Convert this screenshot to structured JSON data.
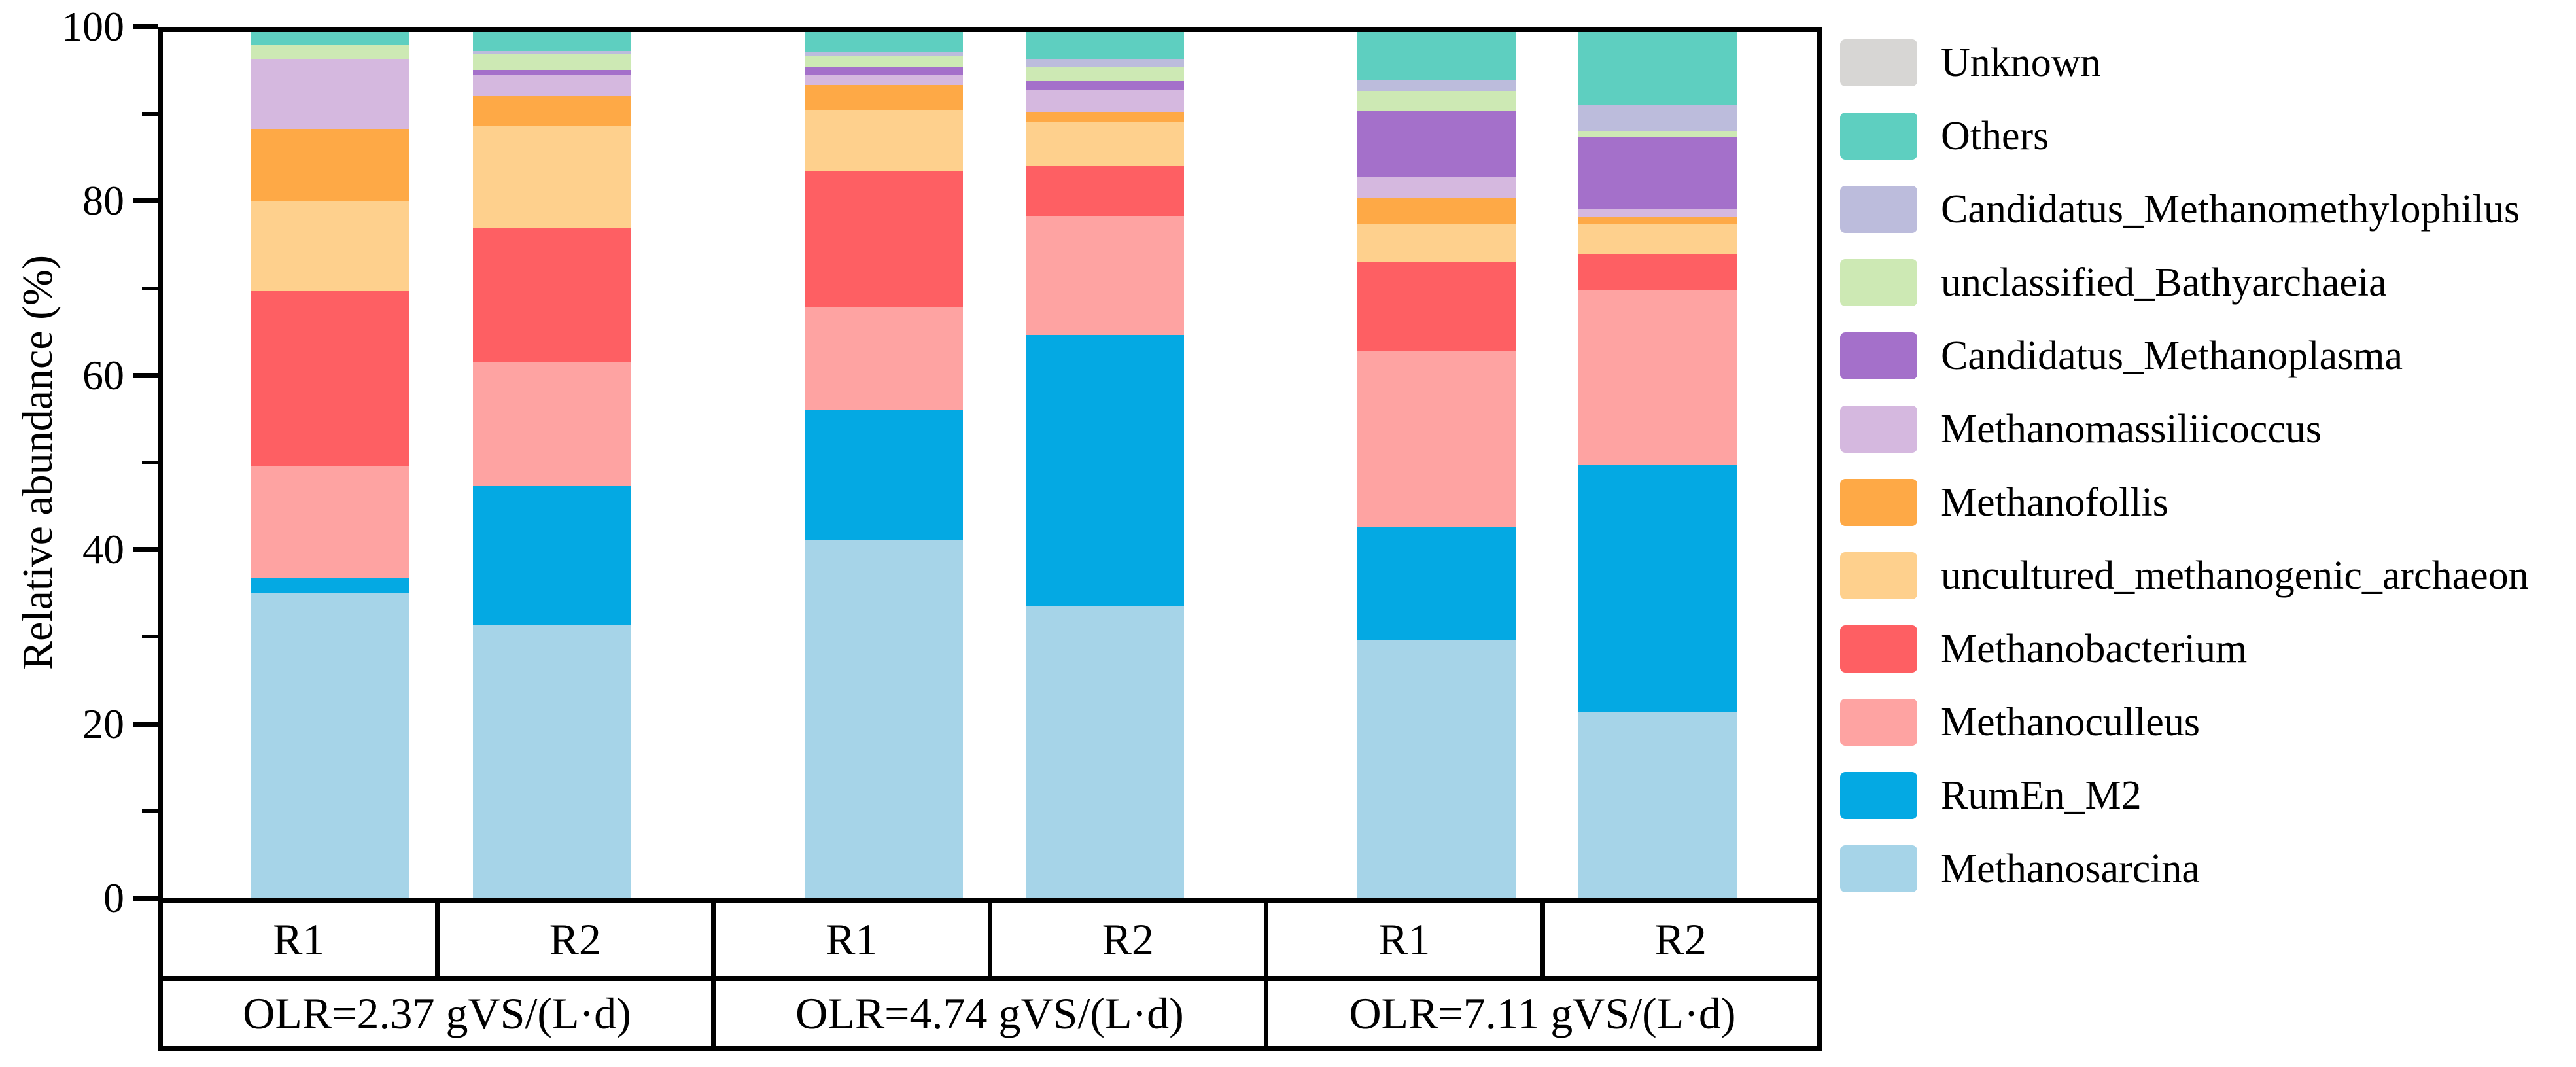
{
  "chart_data": {
    "type": "bar",
    "stacked": true,
    "ylabel": "Relative abundance (%)",
    "ylim": [
      0,
      100
    ],
    "yticks": [
      0,
      20,
      40,
      60,
      80,
      100
    ],
    "minor_yticks": [
      10,
      30,
      50,
      70,
      90
    ],
    "grid": false,
    "legend_position": "right",
    "categories": [
      "R1",
      "R2",
      "R1",
      "R2",
      "R1",
      "R2"
    ],
    "groups": [
      {
        "label": "OLR=2.37 gVS/(L·d)",
        "span": 2
      },
      {
        "label": "OLR=4.74 gVS/(L·d)",
        "span": 2
      },
      {
        "label": "OLR=7.11 gVS/(L·d)",
        "span": 2
      }
    ],
    "series": [
      {
        "name": "Unknown",
        "color": "#d7d6d4",
        "values": [
          0,
          0,
          0,
          0,
          0,
          0
        ]
      },
      {
        "name": "Others",
        "color": "#5ecfc0",
        "values": [
          1.5,
          2.2,
          2.3,
          3.1,
          5.6,
          8.4
        ]
      },
      {
        "name": "Candidatus_Methanomethylophilus",
        "color": "#bcbcdc",
        "values": [
          0,
          0.4,
          0.5,
          1.0,
          1.2,
          3.0
        ]
      },
      {
        "name": "unclassified_Bathyarchaeia",
        "color": "#cde9b4",
        "values": [
          1.6,
          1.8,
          1.2,
          1.6,
          2.3,
          0.7
        ]
      },
      {
        "name": "Candidatus_Methanoplasma",
        "color": "#a470ca",
        "values": [
          0,
          0.5,
          1.0,
          1.0,
          7.7,
          8.4
        ]
      },
      {
        "name": "Methanomassiliicoccus",
        "color": "#d5b8df",
        "values": [
          8.1,
          2.4,
          1.1,
          2.5,
          2.4,
          0.8
        ]
      },
      {
        "name": "Methanofollis",
        "color": "#fea946",
        "values": [
          8.3,
          3.5,
          2.9,
          1.2,
          2.9,
          0.8
        ]
      },
      {
        "name": "uncultured_methanogenic_archaeon",
        "color": "#fed08d",
        "values": [
          10.4,
          11.8,
          7.1,
          5.1,
          4.5,
          3.6
        ]
      },
      {
        "name": "Methanobacterium",
        "color": "#fe5f63",
        "values": [
          20.2,
          15.5,
          15.7,
          5.7,
          10.2,
          4.1
        ]
      },
      {
        "name": "Methanoculleus",
        "color": "#fea3a2",
        "values": [
          13.0,
          14.3,
          11.8,
          13.8,
          20.3,
          20.2
        ]
      },
      {
        "name": "RumEn_M2",
        "color": "#04a9e3",
        "values": [
          1.6,
          16.0,
          15.1,
          31.2,
          13.1,
          28.5
        ]
      },
      {
        "name": "Methanosarcina",
        "color": "#a6d4e8",
        "values": [
          35.3,
          31.6,
          41.3,
          33.8,
          29.8,
          21.5
        ]
      }
    ]
  }
}
